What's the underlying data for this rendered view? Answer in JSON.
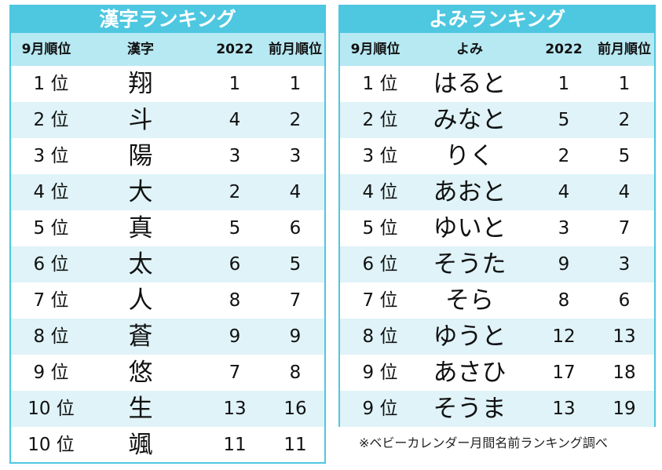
{
  "kanji_ranking": {
    "title": "漢字ランキング",
    "headers": {
      "rank": "9月順位",
      "item": "漢字",
      "year2022": "2022",
      "prev": "前月順位"
    },
    "rows": [
      {
        "rank": "1 位",
        "item": "翔",
        "year2022": "1",
        "prev": "1"
      },
      {
        "rank": "2 位",
        "item": "斗",
        "year2022": "4",
        "prev": "2"
      },
      {
        "rank": "3 位",
        "item": "陽",
        "year2022": "3",
        "prev": "3"
      },
      {
        "rank": "4 位",
        "item": "大",
        "year2022": "2",
        "prev": "4"
      },
      {
        "rank": "5 位",
        "item": "真",
        "year2022": "5",
        "prev": "6"
      },
      {
        "rank": "6 位",
        "item": "太",
        "year2022": "6",
        "prev": "5"
      },
      {
        "rank": "7 位",
        "item": "人",
        "year2022": "8",
        "prev": "7"
      },
      {
        "rank": "8 位",
        "item": "蒼",
        "year2022": "9",
        "prev": "9"
      },
      {
        "rank": "9 位",
        "item": "悠",
        "year2022": "7",
        "prev": "8"
      },
      {
        "rank": "10 位",
        "item": "生",
        "year2022": "13",
        "prev": "16"
      },
      {
        "rank": "10 位",
        "item": "颯",
        "year2022": "11",
        "prev": "11"
      }
    ]
  },
  "yomi_ranking": {
    "title": "よみランキング",
    "headers": {
      "rank": "9月順位",
      "item": "よみ",
      "year2022": "2022",
      "prev": "前月順位"
    },
    "rows": [
      {
        "rank": "1 位",
        "item": "はると",
        "year2022": "1",
        "prev": "1"
      },
      {
        "rank": "2 位",
        "item": "みなと",
        "year2022": "5",
        "prev": "2"
      },
      {
        "rank": "3 位",
        "item": "りく",
        "year2022": "2",
        "prev": "5"
      },
      {
        "rank": "4 位",
        "item": "あおと",
        "year2022": "4",
        "prev": "4"
      },
      {
        "rank": "5 位",
        "item": "ゆいと",
        "year2022": "3",
        "prev": "7"
      },
      {
        "rank": "6 位",
        "item": "そうた",
        "year2022": "9",
        "prev": "3"
      },
      {
        "rank": "7 位",
        "item": "そら",
        "year2022": "8",
        "prev": "6"
      },
      {
        "rank": "8 位",
        "item": "ゆうと",
        "year2022": "12",
        "prev": "13"
      },
      {
        "rank": "9 位",
        "item": "あさひ",
        "year2022": "17",
        "prev": "18"
      },
      {
        "rank": "9 位",
        "item": "そうま",
        "year2022": "13",
        "prev": "19"
      }
    ]
  },
  "footnote": "※ベビーカレンダー月間名前ランキング調べ",
  "colors": {
    "accent": "#4ec7e0",
    "header_bg": "#b7e9f3",
    "alt_row": "#dff3f8"
  }
}
